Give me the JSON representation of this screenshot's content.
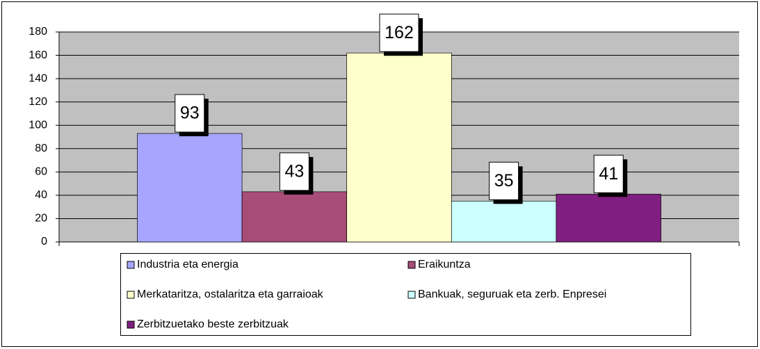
{
  "chart_data": {
    "type": "bar",
    "series": [
      {
        "name": "Industria eta energia",
        "color": "#a6a6ff",
        "values": [
          93
        ]
      },
      {
        "name": "Eraikuntza",
        "color": "#a84c78",
        "values": [
          43
        ]
      },
      {
        "name": "Merkataritza, ostalaritza eta garraioak",
        "color": "#ffffcc",
        "values": [
          162
        ]
      },
      {
        "name": "Bankuak, seguruak eta zerb. Enpresei",
        "color": "#ccffff",
        "values": [
          35
        ]
      },
      {
        "name": "Zerbitzuetako beste zerbitzuak",
        "color": "#7f1f7f",
        "values": [
          41
        ]
      }
    ],
    "ylim": [
      0,
      180
    ],
    "yticks": [
      0,
      20,
      40,
      60,
      80,
      100,
      120,
      140,
      160,
      180
    ],
    "grid": true,
    "plot_background": "#c0c0c0",
    "legend": "bottom"
  }
}
